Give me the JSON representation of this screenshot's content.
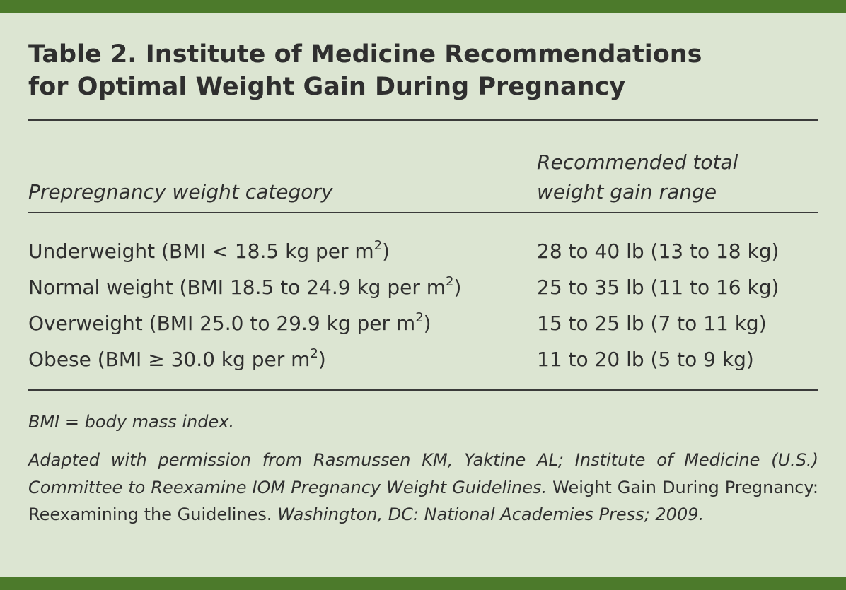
{
  "table": {
    "title_line1": "Table 2. Institute of Medicine Recommendations",
    "title_line2": "for Optimal Weight Gain During Pregnancy",
    "headers": {
      "category": "Prepregnancy weight category",
      "gain_line1": "Recommended total",
      "gain_line2": "weight gain range"
    },
    "rows": [
      {
        "label": "Underweight (BMI < 18.5 kg per m",
        "sup": "2",
        "close": ")",
        "gain": "28 to 40 lb (13 to 18 kg)"
      },
      {
        "label": "Normal weight (BMI 18.5 to 24.9 kg per m",
        "sup": "2",
        "close": ")",
        "gain": "25 to 35 lb (11 to 16 kg)"
      },
      {
        "label": "Overweight (BMI 25.0 to 29.9 kg per m",
        "sup": "2",
        "close": ")",
        "gain": "15 to 25 lb (7 to 11 kg)"
      },
      {
        "label": "Obese (BMI ≥ 30.0 kg per m",
        "sup": "2",
        "close": ")",
        "gain": "11 to 20 lb (5 to 9 kg)"
      }
    ],
    "abbreviation": "BMI = body mass index.",
    "source": {
      "part1": "Adapted with permission from Rasmussen KM, Yaktine AL; Institute of Medicine (U.S.) Committee to Reexamine IOM Pregnancy Weight Guidelines.",
      "part2": "Weight Gain During Pregnancy: Reexamining the Guidelines.",
      "part3": "Washington, DC: National Academies Press; 2009."
    }
  },
  "colors": {
    "background": "#dce5d2",
    "accent_bar": "#4c7a2b",
    "text": "#2f2f2f"
  }
}
